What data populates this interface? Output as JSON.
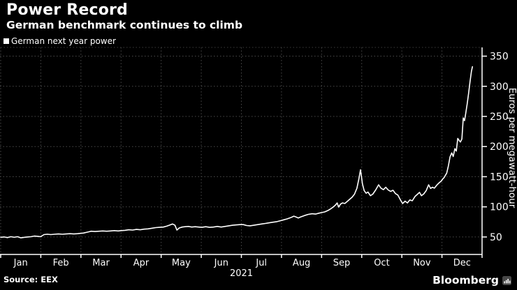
{
  "header": {
    "title": "Power Record",
    "subtitle": "German benchmark continues to climb"
  },
  "legend": {
    "label": "German next year power"
  },
  "chart_data": {
    "type": "line",
    "title": "Power Record",
    "subtitle": "German benchmark continues to climb",
    "legend_position": "top-left",
    "grid": "dotted",
    "x_unit": "fraction of year 2021",
    "xticklabels": [
      "Jan",
      "Feb",
      "Mar",
      "Apr",
      "May",
      "Jun",
      "Jul",
      "Aug",
      "Sep",
      "Oct",
      "Nov",
      "Dec"
    ],
    "x_year_label": "2021",
    "ylabel": "Euros per megawatt-hour",
    "yticks": [
      50,
      100,
      150,
      200,
      250,
      300,
      350
    ],
    "ylim": [
      21,
      364.5
    ],
    "series": [
      {
        "name": "German next year power",
        "color": "#ffffff",
        "points": [
          [
            0.0,
            49.5
          ],
          [
            0.007,
            50
          ],
          [
            0.014,
            49
          ],
          [
            0.021,
            50.5
          ],
          [
            0.028,
            49.5
          ],
          [
            0.035,
            50.5
          ],
          [
            0.042,
            48.5
          ],
          [
            0.049,
            49.5
          ],
          [
            0.056,
            50
          ],
          [
            0.063,
            50.5
          ],
          [
            0.07,
            51.5
          ],
          [
            0.077,
            51
          ],
          [
            0.083,
            50.5
          ],
          [
            0.09,
            54
          ],
          [
            0.097,
            54.5
          ],
          [
            0.104,
            54
          ],
          [
            0.112,
            54.5
          ],
          [
            0.12,
            55
          ],
          [
            0.128,
            54.5
          ],
          [
            0.136,
            55
          ],
          [
            0.144,
            55.5
          ],
          [
            0.152,
            55
          ],
          [
            0.16,
            55.5
          ],
          [
            0.166,
            56
          ],
          [
            0.172,
            56.5
          ],
          [
            0.18,
            58
          ],
          [
            0.188,
            59.5
          ],
          [
            0.196,
            59
          ],
          [
            0.204,
            59.5
          ],
          [
            0.212,
            60
          ],
          [
            0.22,
            59.5
          ],
          [
            0.228,
            60
          ],
          [
            0.236,
            60.5
          ],
          [
            0.244,
            60
          ],
          [
            0.25,
            60.5
          ],
          [
            0.258,
            61
          ],
          [
            0.266,
            62
          ],
          [
            0.274,
            61.5
          ],
          [
            0.282,
            62.5
          ],
          [
            0.29,
            62
          ],
          [
            0.298,
            63
          ],
          [
            0.306,
            63.5
          ],
          [
            0.314,
            64.5
          ],
          [
            0.322,
            65.5
          ],
          [
            0.33,
            66
          ],
          [
            0.338,
            66.5
          ],
          [
            0.345,
            68
          ],
          [
            0.352,
            70
          ],
          [
            0.357,
            71.5
          ],
          [
            0.362,
            69.5
          ],
          [
            0.366,
            61.5
          ],
          [
            0.371,
            65
          ],
          [
            0.377,
            66.5
          ],
          [
            0.383,
            67
          ],
          [
            0.39,
            67.5
          ],
          [
            0.397,
            66.5
          ],
          [
            0.404,
            67
          ],
          [
            0.411,
            66.5
          ],
          [
            0.418,
            66
          ],
          [
            0.426,
            67
          ],
          [
            0.434,
            66
          ],
          [
            0.442,
            66.5
          ],
          [
            0.45,
            67.5
          ],
          [
            0.458,
            66.5
          ],
          [
            0.466,
            67.5
          ],
          [
            0.474,
            68.5
          ],
          [
            0.482,
            69.5
          ],
          [
            0.49,
            70
          ],
          [
            0.497,
            70.5
          ],
          [
            0.504,
            70.5
          ],
          [
            0.511,
            69
          ],
          [
            0.518,
            68.5
          ],
          [
            0.526,
            69.5
          ],
          [
            0.534,
            70.5
          ],
          [
            0.542,
            71.5
          ],
          [
            0.55,
            72.5
          ],
          [
            0.558,
            73.5
          ],
          [
            0.566,
            74.5
          ],
          [
            0.574,
            75.5
          ],
          [
            0.581,
            77
          ],
          [
            0.588,
            78.5
          ],
          [
            0.595,
            80
          ],
          [
            0.602,
            82
          ],
          [
            0.609,
            84.5
          ],
          [
            0.614,
            83
          ],
          [
            0.618,
            81.5
          ],
          [
            0.624,
            83.5
          ],
          [
            0.631,
            85.5
          ],
          [
            0.639,
            87.5
          ],
          [
            0.647,
            88.5
          ],
          [
            0.654,
            88
          ],
          [
            0.661,
            89.5
          ],
          [
            0.667,
            90.5
          ],
          [
            0.673,
            91.5
          ],
          [
            0.68,
            94
          ],
          [
            0.687,
            97.5
          ],
          [
            0.692,
            100.5
          ],
          [
            0.696,
            103.5
          ],
          [
            0.699,
            106.5
          ],
          [
            0.702,
            99.5
          ],
          [
            0.706,
            104.5
          ],
          [
            0.71,
            106.5
          ],
          [
            0.715,
            105.5
          ],
          [
            0.72,
            109
          ],
          [
            0.725,
            112.5
          ],
          [
            0.73,
            116
          ],
          [
            0.735,
            121
          ],
          [
            0.74,
            131
          ],
          [
            0.744,
            146
          ],
          [
            0.7475,
            161.5
          ],
          [
            0.7515,
            138
          ],
          [
            0.755,
            127
          ],
          [
            0.759,
            122.5
          ],
          [
            0.763,
            124.5
          ],
          [
            0.768,
            118.5
          ],
          [
            0.773,
            121
          ],
          [
            0.779,
            128
          ],
          [
            0.785,
            136.5
          ],
          [
            0.79,
            131
          ],
          [
            0.795,
            128.5
          ],
          [
            0.8,
            132.5
          ],
          [
            0.805,
            128
          ],
          [
            0.81,
            125.5
          ],
          [
            0.815,
            127.5
          ],
          [
            0.82,
            122
          ],
          [
            0.825,
            119.5
          ],
          [
            0.83,
            112
          ],
          [
            0.835,
            105.5
          ],
          [
            0.84,
            109.5
          ],
          [
            0.845,
            106.5
          ],
          [
            0.85,
            111.5
          ],
          [
            0.855,
            110
          ],
          [
            0.861,
            117.5
          ],
          [
            0.866,
            121
          ],
          [
            0.87,
            124
          ],
          [
            0.874,
            118.5
          ],
          [
            0.879,
            121.5
          ],
          [
            0.884,
            127
          ],
          [
            0.889,
            136.5
          ],
          [
            0.893,
            130.5
          ],
          [
            0.897,
            132.5
          ],
          [
            0.901,
            131
          ],
          [
            0.906,
            136
          ],
          [
            0.911,
            140
          ],
          [
            0.9155,
            143
          ],
          [
            0.918,
            146
          ],
          [
            0.921,
            148.5
          ],
          [
            0.9265,
            156
          ],
          [
            0.93,
            168
          ],
          [
            0.9335,
            183
          ],
          [
            0.937,
            189.5
          ],
          [
            0.94,
            183.5
          ],
          [
            0.9435,
            196.5
          ],
          [
            0.9465,
            192.5
          ],
          [
            0.9495,
            213.5
          ],
          [
            0.9525,
            210
          ],
          [
            0.955,
            207.5
          ],
          [
            0.958,
            212.5
          ],
          [
            0.961,
            247.5
          ],
          [
            0.9635,
            243
          ],
          [
            0.966,
            255
          ],
          [
            0.969,
            270
          ],
          [
            0.972,
            288
          ],
          [
            0.975,
            308
          ],
          [
            0.978,
            325
          ],
          [
            0.98,
            332.5
          ]
        ]
      }
    ]
  },
  "footer": {
    "source": "Source: EEX",
    "brand": "Bloomberg"
  },
  "colors": {
    "background": "#000000",
    "text": "#ffffff",
    "grid": "#4a4a4a",
    "axis": "#ffffff",
    "line": "#ffffff",
    "brand_icon_bg": "#474747"
  }
}
